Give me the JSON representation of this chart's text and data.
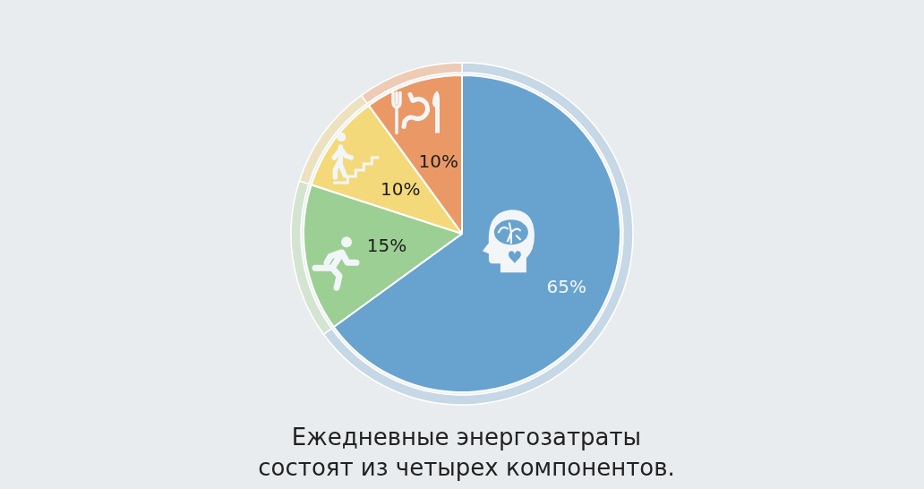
{
  "chart_data": {
    "type": "pie",
    "title": "Ежедневные энергозатраты состоят из четырех компонентов.",
    "categories": [
      null,
      null,
      null,
      null
    ],
    "series": [
      {
        "values": [
          65,
          15,
          10,
          10
        ],
        "colors": [
          "#68a3cf",
          "#9ccf94",
          "#f4d97a",
          "#ea9966"
        ],
        "value_labels": [
          "65%",
          "15%",
          "10%",
          "10%"
        ]
      },
      {
        "type": "donut",
        "values": [
          65,
          15,
          10,
          10
        ],
        "colors": [
          "#c6d7e5",
          "#d3e4d0",
          "#ede2bf",
          "#eecbb5"
        ]
      }
    ]
  }
}
